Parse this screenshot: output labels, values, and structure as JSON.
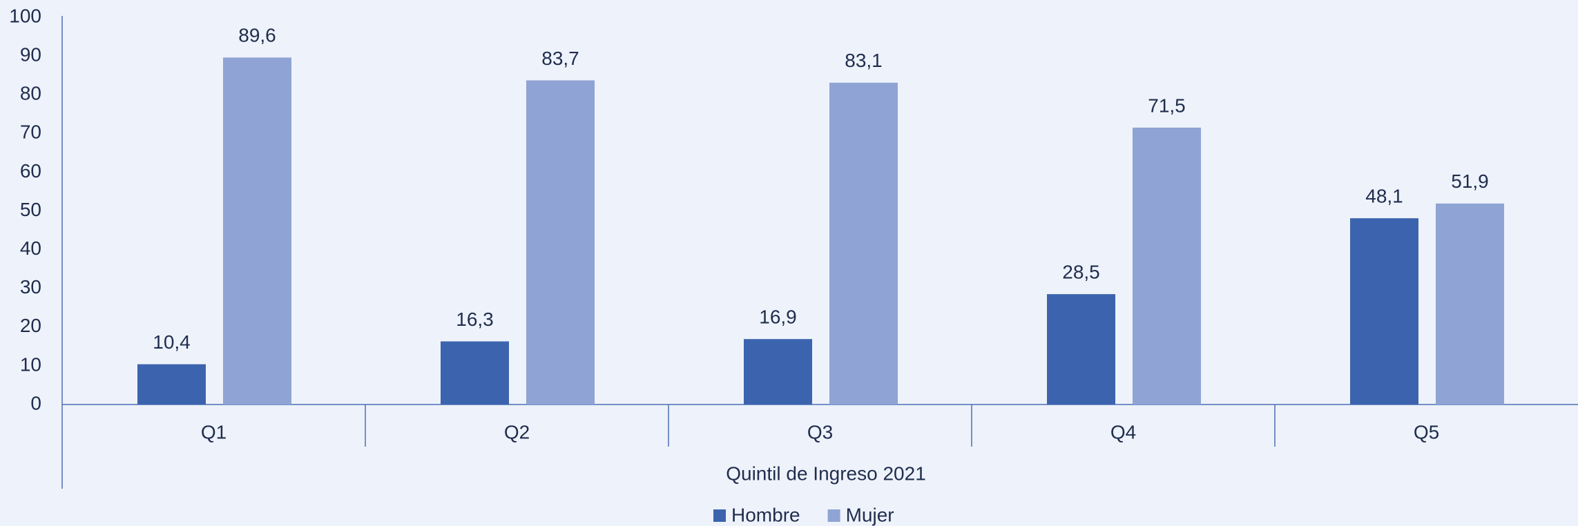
{
  "chart_data": {
    "type": "bar",
    "x_label": "Quintil de Ingreso 2021",
    "categories": [
      "Q1",
      "Q2",
      "Q3",
      "Q4",
      "Q5"
    ],
    "series": [
      {
        "name": "Hombre",
        "color": "#3c64ae",
        "values": [
          10.4,
          16.3,
          16.9,
          28.5,
          48.1
        ],
        "value_labels": [
          "10,4",
          "16,3",
          "16,9",
          "28,5",
          "48,1"
        ]
      },
      {
        "name": "Mujer",
        "color": "#8fa3d4",
        "values": [
          89.6,
          83.7,
          83.1,
          71.5,
          51.9
        ],
        "value_labels": [
          "89,6",
          "83,7",
          "83,1",
          "71,5",
          "51,9"
        ]
      }
    ],
    "ylim": [
      0,
      100
    ],
    "yticks": [
      0,
      10,
      20,
      30,
      40,
      50,
      60,
      70,
      80,
      90,
      100
    ],
    "grid": false,
    "legend": "bottom"
  }
}
